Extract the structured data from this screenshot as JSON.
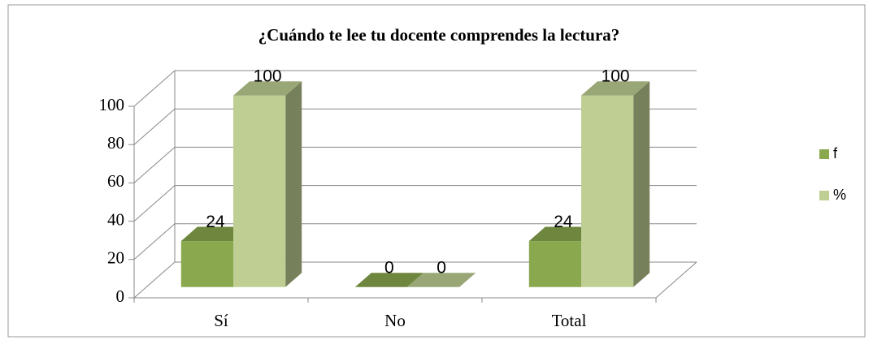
{
  "chart_data": {
    "type": "bar",
    "title": "¿Cuándo te lee tu docente comprendes la lectura?",
    "categories": [
      "Sí",
      "No",
      "Total"
    ],
    "series": [
      {
        "name": "f",
        "color": "#8aa84e",
        "values": [
          24,
          0,
          24
        ]
      },
      {
        "name": "%",
        "color": "#bfcf93",
        "values": [
          100,
          0,
          100
        ]
      }
    ],
    "ylim": [
      0,
      100
    ],
    "yticks": [
      0,
      20,
      40,
      60,
      80,
      100
    ],
    "grid": true,
    "legend": "right"
  }
}
